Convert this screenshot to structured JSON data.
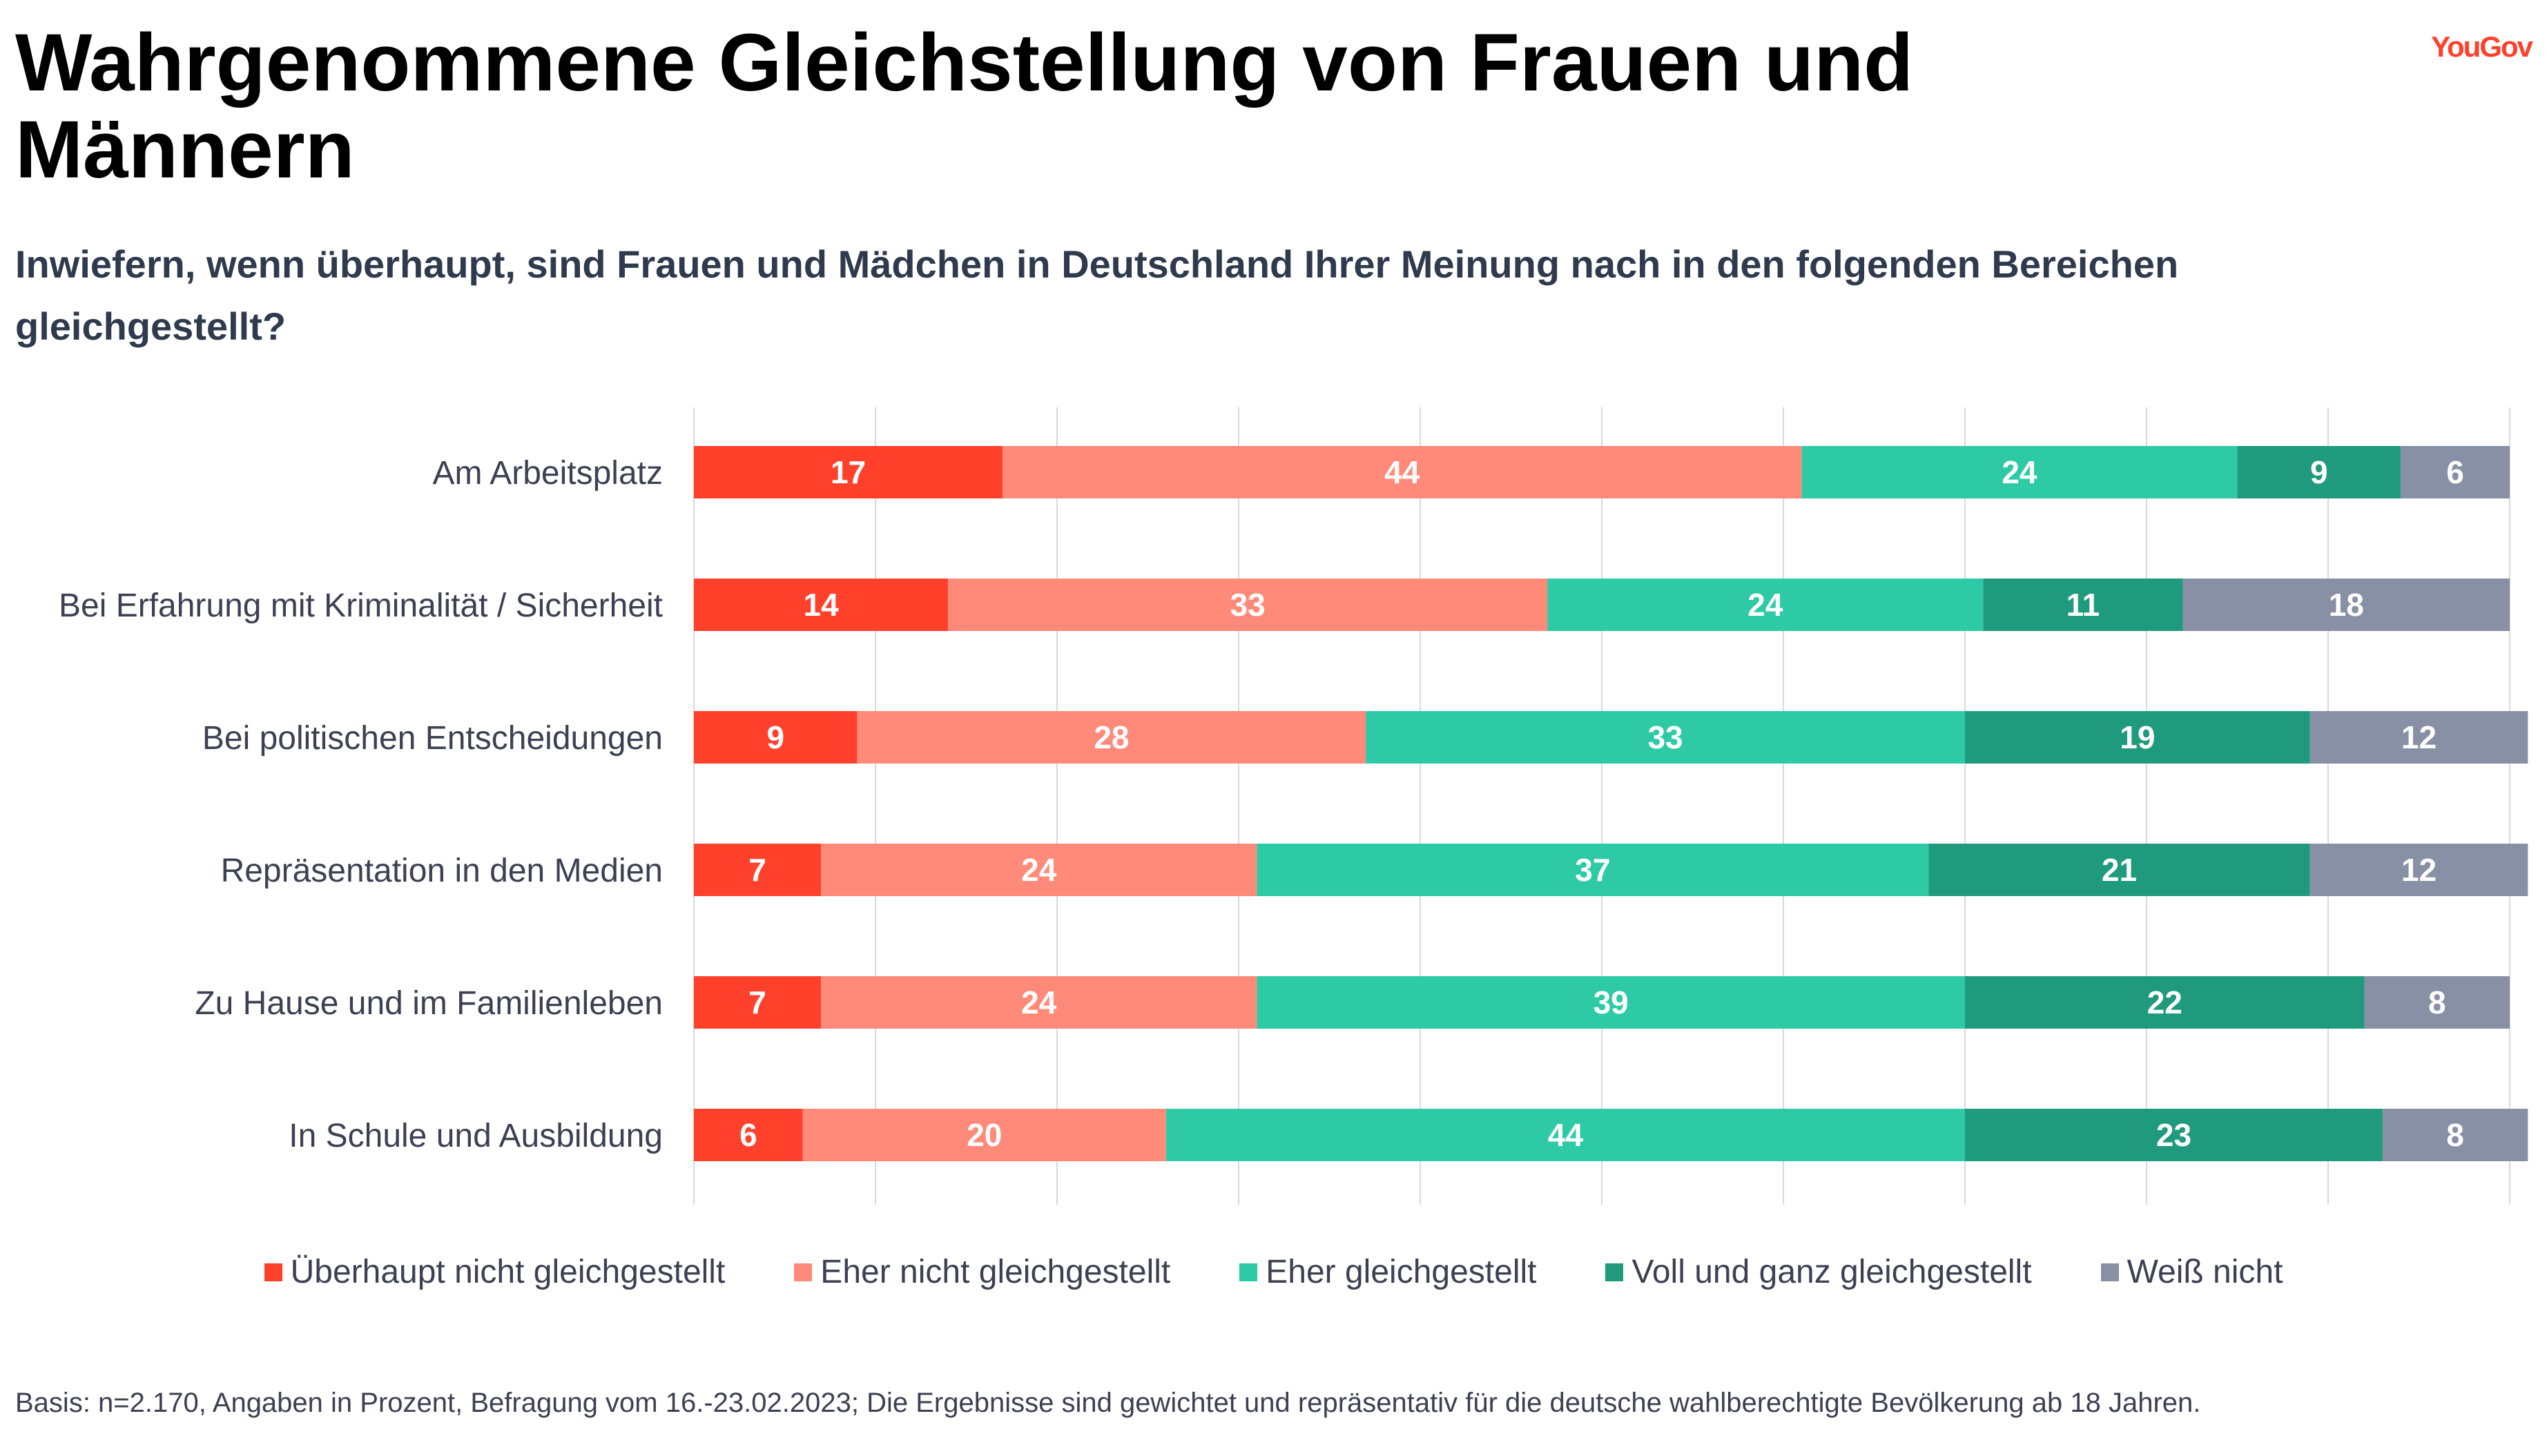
{
  "header": {
    "title": "Wahrgenommene Gleichstellung von Frauen und Männern",
    "subtitle": "Inwiefern, wenn überhaupt, sind Frauen und Mädchen in Deutschland Ihrer Meinung nach in den folgenden Bereichen gleichgestellt?",
    "brand": "YouGov"
  },
  "footnote": "Basis: n=2.170, Angaben in Prozent, Befragung vom 16.-23.02.2023; Die Ergebnisse sind gewichtet und repräsentativ für die deutsche wahlberechtigte Bevölkerung ab 18 Jahren.",
  "chart_data": {
    "type": "bar",
    "orientation": "horizontal",
    "stacked": true,
    "categories": [
      "Am Arbeitsplatz",
      "Bei Erfahrung mit Kriminalität / Sicherheit",
      "Bei politischen Entscheidungen",
      "Repräsentation in den Medien",
      "Zu Hause und im Familienleben",
      "In Schule und Ausbildung"
    ],
    "series": [
      {
        "name": "Überhaupt nicht gleichgestellt",
        "color": "#ff412c",
        "values": [
          17,
          14,
          9,
          7,
          7,
          6
        ]
      },
      {
        "name": "Eher nicht gleichgestellt",
        "color": "#ff8a7a",
        "values": [
          44,
          33,
          28,
          24,
          24,
          20
        ]
      },
      {
        "name": "Eher gleichgestellt",
        "color": "#2ecaa6",
        "values": [
          24,
          24,
          33,
          37,
          39,
          44
        ]
      },
      {
        "name": "Voll und ganz gleichgestellt",
        "color": "#1f9a7c",
        "values": [
          9,
          11,
          19,
          21,
          22,
          23
        ]
      },
      {
        "name": "Weiß nicht",
        "color": "#8790a5",
        "values": [
          6,
          18,
          12,
          12,
          8,
          8
        ]
      }
    ],
    "xlim": [
      0,
      100
    ],
    "grid": true,
    "legend_position": "bottom"
  }
}
